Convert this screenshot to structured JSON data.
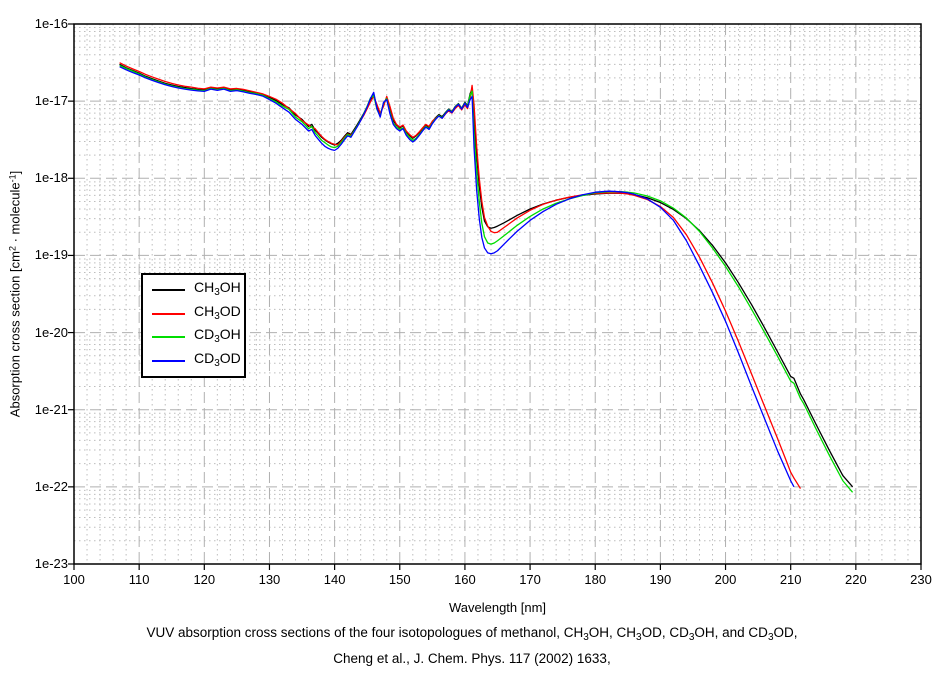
{
  "figure": {
    "caption_lines": [
      [
        {
          "t": "VUV absorption cross sections of the four isotopologues of methanol, CH"
        },
        {
          "sub": "3"
        },
        {
          "t": "OH, CH"
        },
        {
          "sub": "3"
        },
        {
          "t": "OD, CD"
        },
        {
          "sub": "3"
        },
        {
          "t": "OH, and CD"
        },
        {
          "sub": "3"
        },
        {
          "t": "OD,"
        }
      ],
      [
        {
          "t": "Cheng et al., J. Chem. Phys. 117 (2002) 1633,"
        }
      ]
    ]
  },
  "chart_data": {
    "type": "line",
    "title": "",
    "xlabel": "Wavelength [nm]",
    "ylabel_rich": [
      {
        "t": "Absorption cross section [cm"
      },
      {
        "sup": "2"
      },
      {
        "t": " · molecule"
      },
      {
        "sup": "-1"
      },
      {
        "t": "]"
      }
    ],
    "xlim": [
      100,
      230
    ],
    "x_major_step": 10,
    "x_minor_step": 2,
    "y_scale": "log",
    "ylim": [
      1e-23,
      1e-16
    ],
    "x_tick_labels": [
      "100",
      "110",
      "120",
      "130",
      "140",
      "150",
      "160",
      "170",
      "180",
      "190",
      "200",
      "210",
      "220",
      "230"
    ],
    "y_tick_labels": [
      "1e-16",
      "1e-17",
      "1e-18",
      "1e-19",
      "1e-20",
      "1e-21",
      "1e-22",
      "1e-23"
    ],
    "grid": {
      "on": true,
      "major_color": "#b0b0b0",
      "minor_color": "#bdbdbd"
    },
    "legend": {
      "position": "inside-left",
      "items": [
        {
          "label": [
            {
              "t": "CH"
            },
            {
              "sub": "3"
            },
            {
              "t": "OH"
            }
          ],
          "color": "#000000"
        },
        {
          "label": [
            {
              "t": "CH"
            },
            {
              "sub": "3"
            },
            {
              "t": "OD"
            }
          ],
          "color": "#ff0000"
        },
        {
          "label": [
            {
              "t": "CD"
            },
            {
              "sub": "3"
            },
            {
              "t": "OH"
            }
          ],
          "color": "#00dd00"
        },
        {
          "label": [
            {
              "t": "CD"
            },
            {
              "sub": "3"
            },
            {
              "t": "OD"
            }
          ],
          "color": "#0000ff"
        }
      ]
    },
    "x": [
      107,
      108,
      109,
      110,
      111,
      112,
      113,
      114,
      115,
      116,
      117,
      118,
      119,
      120,
      121,
      122,
      123,
      124,
      125,
      126,
      127,
      128,
      129,
      130,
      131,
      132,
      133,
      134,
      135,
      136,
      136.5,
      137,
      137.5,
      138,
      138.5,
      139,
      139.5,
      140,
      140.5,
      141,
      141.5,
      142,
      142.5,
      143,
      143.5,
      144,
      144.5,
      145,
      145.5,
      146,
      146.5,
      147,
      147.5,
      148,
      148.5,
      149,
      149.5,
      150,
      150.5,
      151,
      151.5,
      152,
      152.5,
      153,
      153.5,
      154,
      154.5,
      155,
      155.5,
      156,
      156.5,
      157,
      157.5,
      158,
      158.5,
      159,
      159.5,
      160,
      160.4,
      160.8,
      161.1,
      161.4,
      161.8,
      162.2,
      162.6,
      163,
      163.5,
      164,
      164.5,
      165,
      166,
      167,
      168,
      170,
      172,
      174,
      176,
      178,
      180,
      182,
      183,
      184,
      185,
      186,
      188,
      190,
      192,
      194,
      196,
      198,
      200,
      202,
      204,
      206,
      208,
      210,
      210.5,
      211.5,
      212,
      214,
      216,
      218,
      219.5
    ],
    "series": [
      {
        "name": "CH3OH",
        "color": "#000000",
        "values": [
          3e-17,
          2.7e-17,
          2.5e-17,
          2.3e-17,
          2.1e-17,
          1.95e-17,
          1.82e-17,
          1.7e-17,
          1.62e-17,
          1.55e-17,
          1.5e-17,
          1.45e-17,
          1.42e-17,
          1.4e-17,
          1.5e-17,
          1.44e-17,
          1.5e-17,
          1.4e-17,
          1.44e-17,
          1.38e-17,
          1.32e-17,
          1.28e-17,
          1.22e-17,
          1.12e-17,
          1.02e-17,
          9e-18,
          8.2e-18,
          6.6e-18,
          5.8e-18,
          4.7e-18,
          5e-18,
          4.2e-18,
          3.8e-18,
          3.4e-18,
          3.15e-18,
          2.95e-18,
          2.8e-18,
          2.7e-18,
          2.85e-18,
          3.1e-18,
          3.5e-18,
          3.9e-18,
          3.7e-18,
          4.3e-18,
          5e-18,
          5.9e-18,
          7e-18,
          8.5e-18,
          1.05e-17,
          1.2e-17,
          8.5e-18,
          6.8e-18,
          9e-18,
          1.12e-17,
          8e-18,
          5.6e-18,
          4.9e-18,
          4.5e-18,
          4.8e-18,
          4e-18,
          3.6e-18,
          3.3e-18,
          3.55e-18,
          3.9e-18,
          4.4e-18,
          4.9e-18,
          4.6e-18,
          5.4e-18,
          6.1e-18,
          6.7e-18,
          6.3e-18,
          7.1e-18,
          7.9e-18,
          7.3e-18,
          8.5e-18,
          9.3e-18,
          8.1e-18,
          9.7e-18,
          8.7e-18,
          1.25e-17,
          1.45e-17,
          6e-18,
          2e-18,
          8e-19,
          4.2e-19,
          2.8e-19,
          2.35e-19,
          2.25e-19,
          2.3e-19,
          2.4e-19,
          2.65e-19,
          2.95e-19,
          3.3e-19,
          4e-19,
          4.65e-19,
          5.2e-19,
          5.65e-19,
          6e-19,
          6.25e-19,
          6.4e-19,
          6.42e-19,
          6.4e-19,
          6.3e-19,
          6.15e-19,
          5.6e-19,
          4.85e-19,
          3.95e-19,
          3e-19,
          2.1e-19,
          1.35e-19,
          8e-20,
          4.4e-20,
          2.3e-20,
          1.15e-20,
          5.6e-21,
          2.7e-21,
          2.55e-21,
          1.6e-21,
          1.35e-21,
          6.2e-22,
          2.9e-22,
          1.4e-22,
          1e-22
        ]
      },
      {
        "name": "CH3OD",
        "color": "#ff0000",
        "values": [
          3.15e-17,
          2.85e-17,
          2.62e-17,
          2.42e-17,
          2.22e-17,
          2.06e-17,
          1.92e-17,
          1.8e-17,
          1.7e-17,
          1.62e-17,
          1.56e-17,
          1.52e-17,
          1.47e-17,
          1.44e-17,
          1.52e-17,
          1.48e-17,
          1.52e-17,
          1.44e-17,
          1.46e-17,
          1.42e-17,
          1.36e-17,
          1.3e-17,
          1.24e-17,
          1.15e-17,
          1.06e-17,
          9.4e-18,
          8e-18,
          6.9e-18,
          5.6e-18,
          4.9e-18,
          4.6e-18,
          4.4e-18,
          3.9e-18,
          3.5e-18,
          3.2e-18,
          3e-18,
          2.85e-18,
          2.75e-18,
          2.7e-18,
          3e-18,
          3.4e-18,
          3.75e-18,
          3.6e-18,
          4.1e-18,
          4.8e-18,
          5.6e-18,
          6.6e-18,
          8e-18,
          9.8e-18,
          1.15e-17,
          9e-18,
          7e-18,
          8.5e-18,
          1.15e-17,
          8.5e-18,
          6e-18,
          5e-18,
          4.6e-18,
          4.9e-18,
          4.1e-18,
          3.7e-18,
          3.4e-18,
          3.6e-18,
          4e-18,
          4.5e-18,
          5e-18,
          4.7e-18,
          5.5e-18,
          6e-18,
          6.5e-18,
          6e-18,
          6.8e-18,
          7.5e-18,
          7e-18,
          8e-18,
          8.8e-18,
          7.7e-18,
          9e-18,
          8e-18,
          1.1e-17,
          1.6e-17,
          9e-18,
          2.6e-18,
          1e-18,
          5e-19,
          3.1e-19,
          2.4e-19,
          2.05e-19,
          1.97e-19,
          2e-19,
          2.3e-19,
          2.65e-19,
          3.05e-19,
          3.85e-19,
          4.6e-19,
          5.2e-19,
          5.7e-19,
          6.1e-19,
          6.35e-19,
          6.45e-19,
          6.45e-19,
          6.4e-19,
          6.25e-19,
          6e-19,
          5.3e-19,
          4.3e-19,
          3.1e-19,
          1.85e-19,
          9.5e-20,
          4.4e-20,
          1.9e-20,
          7.6e-21,
          2.9e-21,
          1.1e-21,
          4.2e-22,
          1.55e-22,
          1.3e-22,
          9.5e-23,
          null,
          null,
          null,
          null,
          null
        ]
      },
      {
        "name": "CD3OH",
        "color": "#00dd00",
        "values": [
          2.9e-17,
          2.65e-17,
          2.45e-17,
          2.25e-17,
          2.05e-17,
          1.9e-17,
          1.78e-17,
          1.66e-17,
          1.58e-17,
          1.51e-17,
          1.46e-17,
          1.42e-17,
          1.39e-17,
          1.37e-17,
          1.46e-17,
          1.41e-17,
          1.46e-17,
          1.37e-17,
          1.4e-17,
          1.35e-17,
          1.29e-17,
          1.25e-17,
          1.19e-17,
          1.08e-17,
          9.8e-18,
          8.6e-18,
          7.8e-18,
          6.2e-18,
          5.4e-18,
          4.4e-18,
          4.7e-18,
          3.9e-18,
          3.5e-18,
          3.1e-18,
          2.9e-18,
          2.7e-18,
          2.55e-18,
          2.5e-18,
          2.6e-18,
          2.9e-18,
          3.3e-18,
          3.7e-18,
          3.5e-18,
          4.1e-18,
          4.8e-18,
          5.7e-18,
          6.9e-18,
          8.6e-18,
          1.1e-17,
          1.18e-17,
          7.8e-18,
          6.4e-18,
          9.4e-18,
          1.08e-17,
          7.2e-18,
          5.2e-18,
          4.6e-18,
          4.3e-18,
          4.5e-18,
          3.8e-18,
          3.4e-18,
          3.1e-18,
          3.3e-18,
          3.7e-18,
          4.2e-18,
          4.7e-18,
          4.4e-18,
          5.2e-18,
          5.9e-18,
          6.5e-18,
          6.1e-18,
          7e-18,
          7.8e-18,
          7.2e-18,
          8.4e-18,
          9.2e-18,
          8e-18,
          9.5e-18,
          8.5e-18,
          1.2e-17,
          1.35e-17,
          4e-18,
          1.2e-18,
          5e-19,
          2.6e-19,
          1.75e-19,
          1.45e-19,
          1.4e-19,
          1.45e-19,
          1.55e-19,
          1.8e-19,
          2.1e-19,
          2.45e-19,
          3.2e-19,
          4e-19,
          4.75e-19,
          5.4e-19,
          5.95e-19,
          6.5e-19,
          6.7e-19,
          6.72e-19,
          6.7e-19,
          6.6e-19,
          6.45e-19,
          5.9e-19,
          5.1e-19,
          4.1e-19,
          3.05e-19,
          2.05e-19,
          1.25e-19,
          7.2e-20,
          3.9e-20,
          2e-20,
          1e-20,
          4.9e-21,
          2.35e-21,
          2.2e-21,
          1.4e-21,
          1.2e-21,
          5.4e-22,
          2.5e-22,
          1.2e-22,
          8.5e-23
        ]
      },
      {
        "name": "CD3OD",
        "color": "#0000ff",
        "values": [
          2.8e-17,
          2.55e-17,
          2.35e-17,
          2.18e-17,
          2e-17,
          1.86e-17,
          1.74e-17,
          1.63e-17,
          1.55e-17,
          1.48e-17,
          1.43e-17,
          1.39e-17,
          1.36e-17,
          1.34e-17,
          1.43e-17,
          1.38e-17,
          1.43e-17,
          1.34e-17,
          1.37e-17,
          1.32e-17,
          1.26e-17,
          1.22e-17,
          1.16e-17,
          1.05e-17,
          9.4e-18,
          8.2e-18,
          7.2e-18,
          5.8e-18,
          5e-18,
          4.1e-18,
          4.3e-18,
          3.6e-18,
          3.2e-18,
          2.85e-18,
          2.6e-18,
          2.45e-18,
          2.35e-18,
          2.3e-18,
          2.45e-18,
          2.75e-18,
          3.15e-18,
          3.55e-18,
          3.4e-18,
          4e-18,
          4.7e-18,
          5.6e-18,
          6.8e-18,
          8.4e-18,
          1.08e-17,
          1.3e-17,
          8e-18,
          6.2e-18,
          9.6e-18,
          1.05e-17,
          6.8e-18,
          5e-18,
          4.4e-18,
          4.1e-18,
          4.4e-18,
          3.6e-18,
          3.2e-18,
          2.95e-18,
          3.2e-18,
          3.6e-18,
          4.1e-18,
          4.6e-18,
          4.3e-18,
          5.1e-18,
          5.8e-18,
          6.4e-18,
          6e-18,
          6.9e-18,
          7.7e-18,
          7.1e-18,
          8.3e-18,
          9.1e-18,
          7.9e-18,
          9.4e-18,
          8.3e-18,
          1.05e-17,
          1.15e-17,
          2.5e-18,
          7e-19,
          3e-19,
          1.7e-19,
          1.25e-19,
          1.08e-19,
          1.05e-19,
          1.08e-19,
          1.15e-19,
          1.4e-19,
          1.7e-19,
          2.05e-19,
          2.85e-19,
          3.7e-19,
          4.6e-19,
          5.4e-19,
          6.1e-19,
          6.6e-19,
          6.8e-19,
          6.75e-19,
          6.65e-19,
          6.5e-19,
          6.2e-19,
          5.4e-19,
          4.2e-19,
          2.85e-19,
          1.55e-19,
          7.3e-20,
          3.3e-20,
          1.4e-20,
          5.4e-21,
          2e-21,
          7.6e-22,
          2.9e-22,
          1.2e-22,
          1e-22,
          null,
          null,
          null,
          null,
          null,
          null
        ]
      }
    ]
  }
}
